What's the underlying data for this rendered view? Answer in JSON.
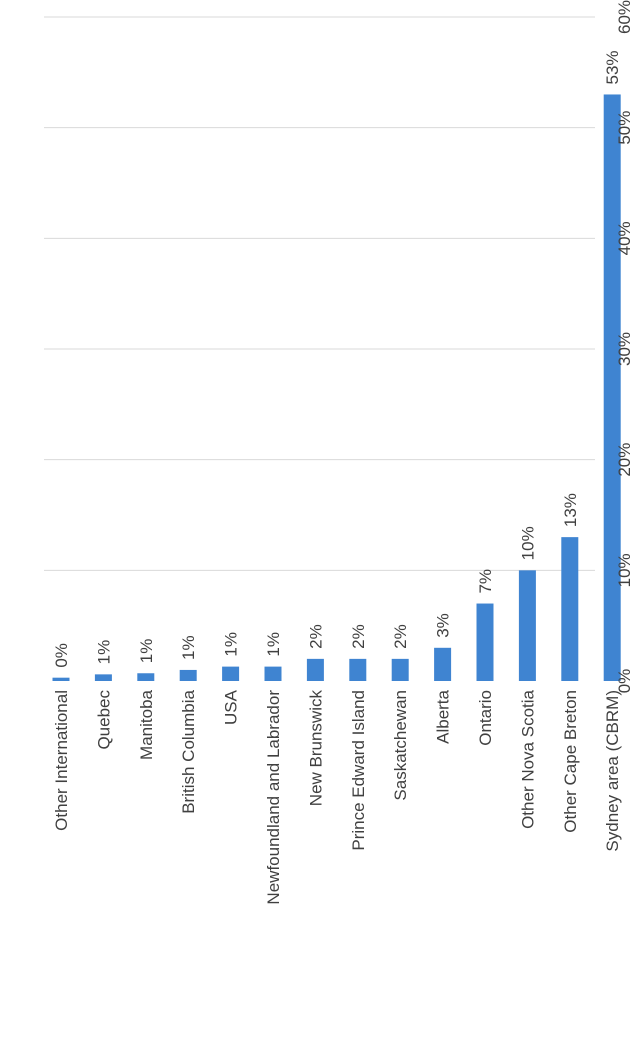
{
  "chart_data": {
    "type": "bar",
    "orientation": "horizontal",
    "rotation": "page rotated 90 degrees counter-clockwise",
    "categories": [
      "Other International",
      "Quebec",
      "Manitoba",
      "British Columbia",
      "USA",
      "Newfoundland and Labrador",
      "New Brunswick",
      "Prince Edward Island",
      "Saskatchewan",
      "Alberta",
      "Ontario",
      "Other Nova Scotia",
      "Other Cape Breton",
      "Sydney area (CBRM)"
    ],
    "values": [
      0.3,
      0.6,
      0.7,
      1.0,
      1.3,
      1.3,
      2.0,
      2.0,
      2.0,
      3.0,
      7.0,
      10.0,
      13.0,
      53.0
    ],
    "data_labels": [
      "0%",
      "1%",
      "1%",
      "1%",
      "1%",
      "1%",
      "2%",
      "2%",
      "2%",
      "3%",
      "7%",
      "10%",
      "13%",
      "53%"
    ],
    "ticks": [
      0,
      10,
      20,
      30,
      40,
      50,
      60
    ],
    "tick_labels": [
      "0%",
      "10%",
      "20%",
      "30%",
      "40%",
      "50%",
      "60%"
    ],
    "xlim": [
      0,
      60
    ],
    "title": "",
    "xlabel": "",
    "ylabel": "",
    "grid": true,
    "legend": "none",
    "colors": {
      "bar": "#3f84d1",
      "grid": "#d9d9d9",
      "text": "#404040"
    }
  }
}
